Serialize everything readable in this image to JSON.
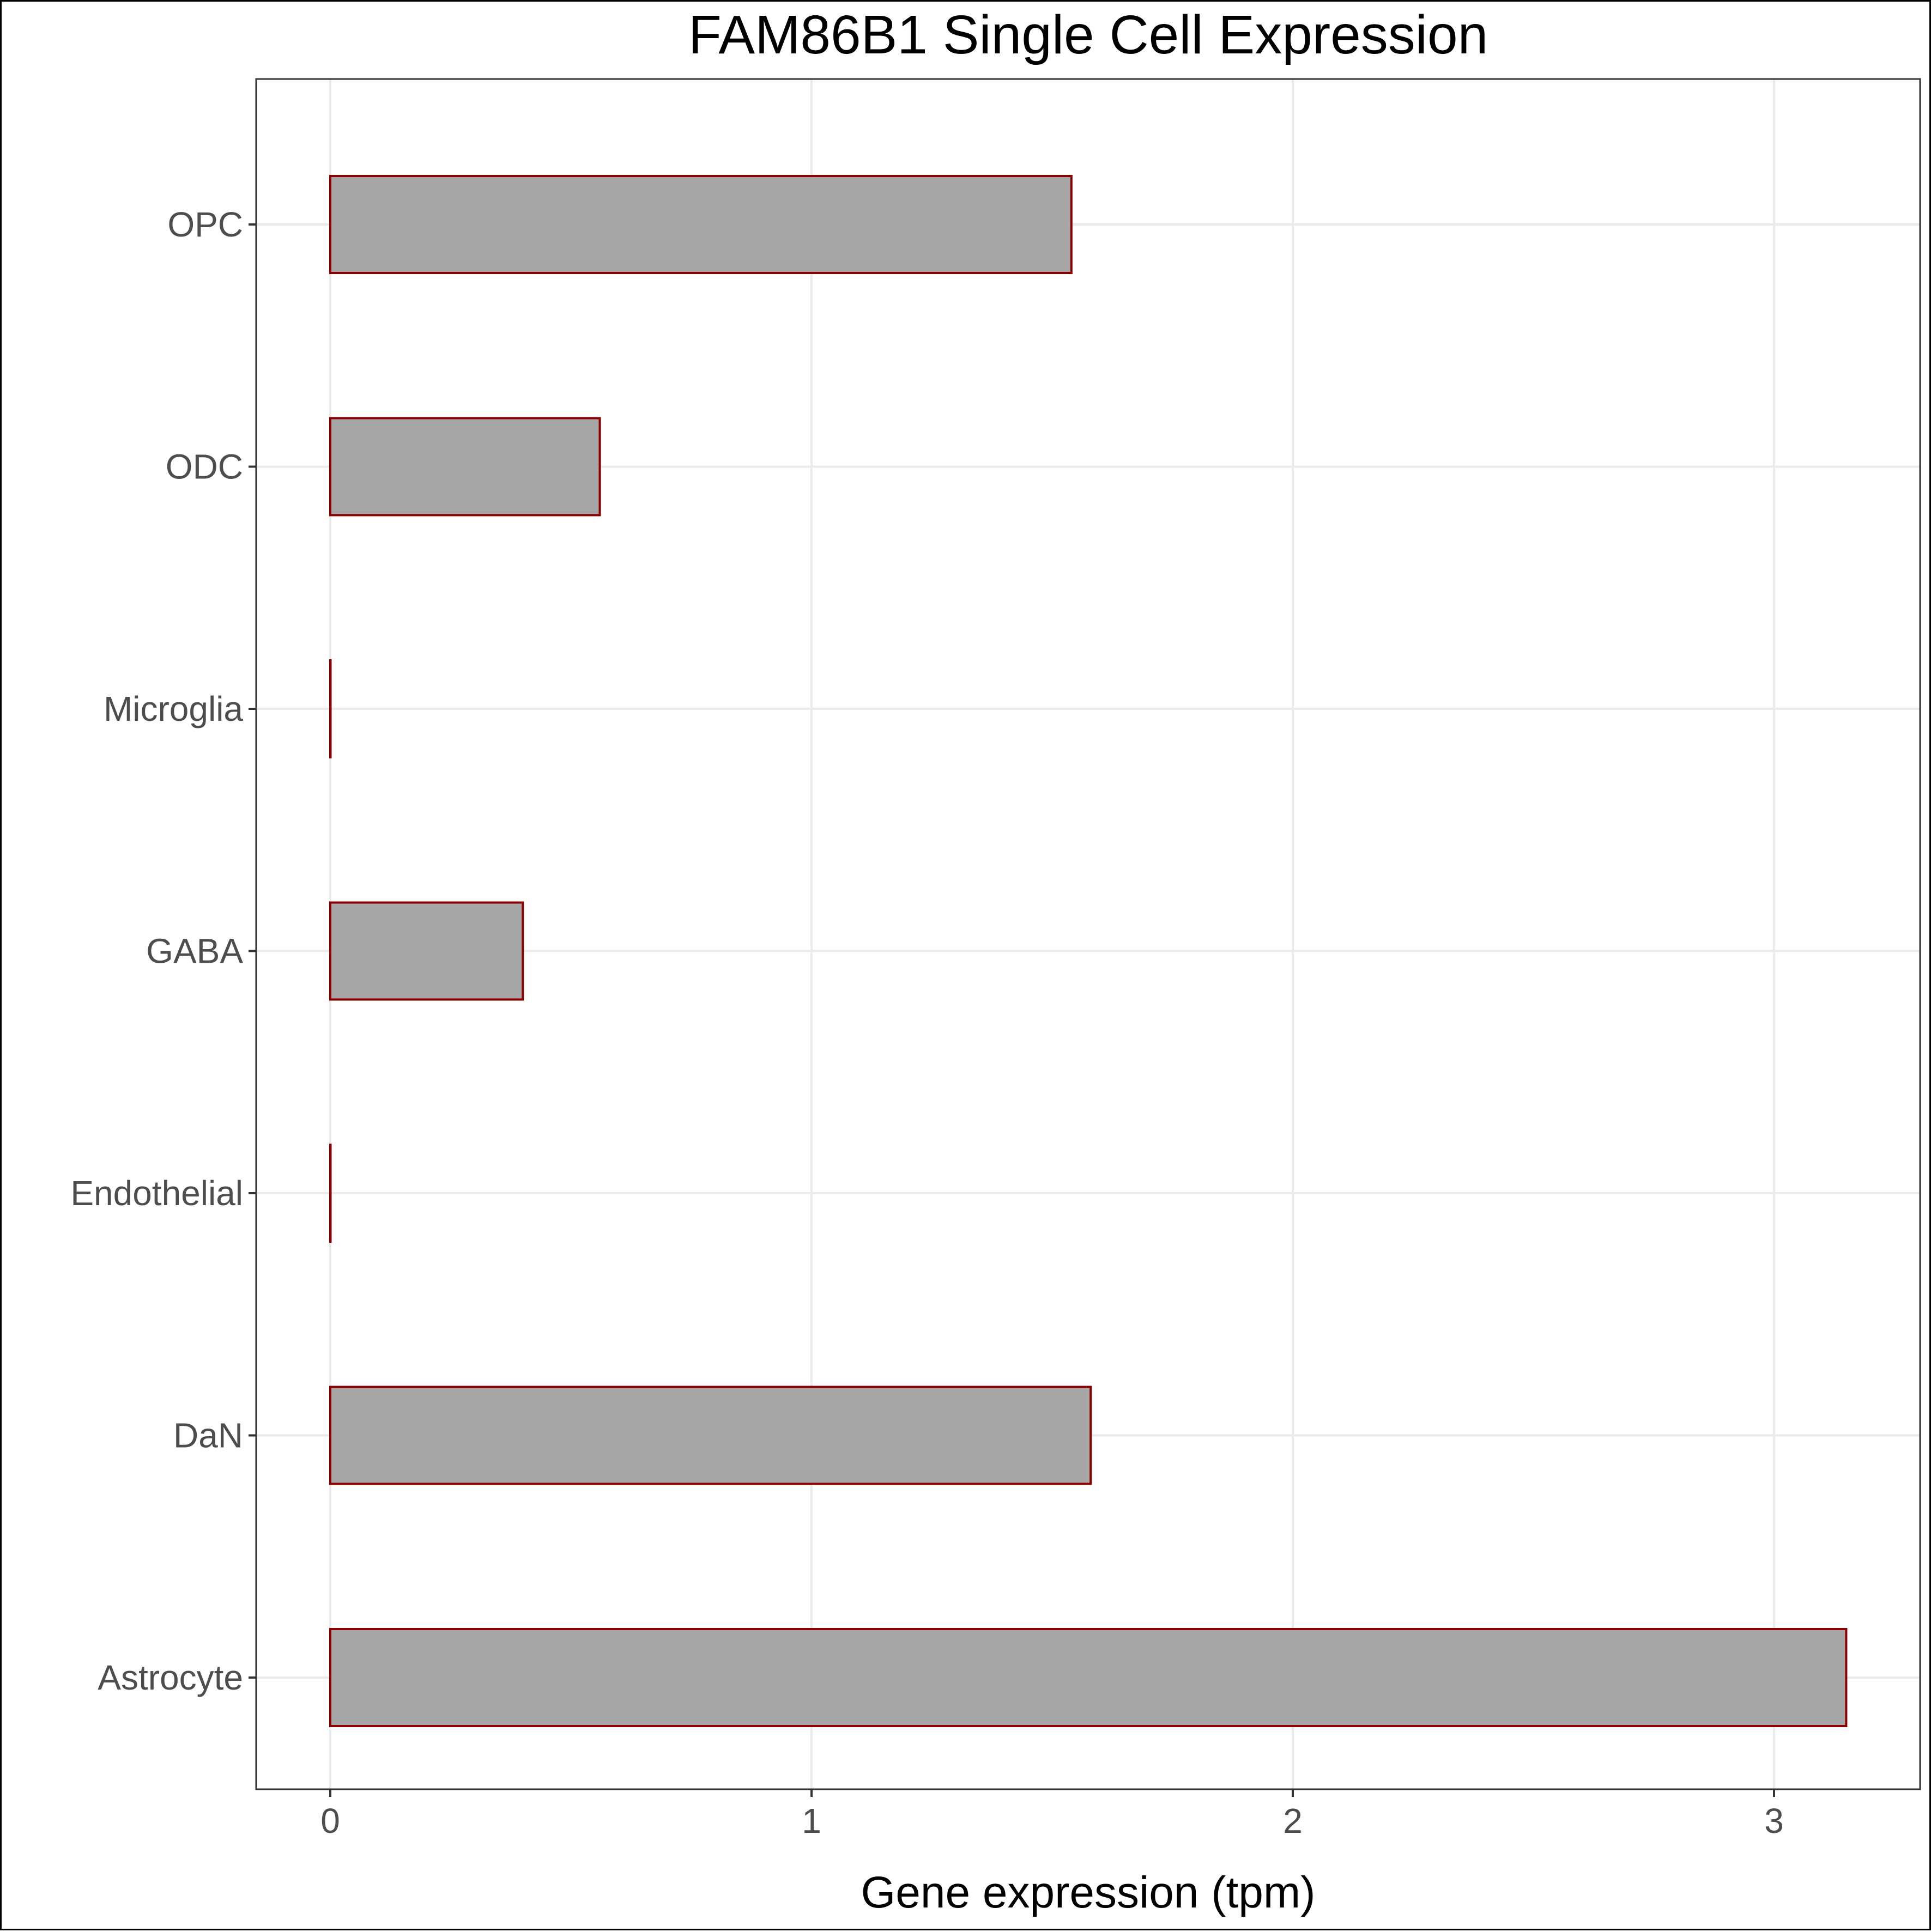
{
  "chart_data": {
    "type": "bar",
    "orientation": "horizontal",
    "title": "FAM86B1 Single Cell Expression",
    "xlabel": "Gene expression (tpm)",
    "ylabel": "",
    "categories": [
      "Astrocyte",
      "DaN",
      "Endothelial",
      "GABA",
      "Microglia",
      "ODC",
      "OPC"
    ],
    "values": [
      3.15,
      1.58,
      0,
      0.4,
      0,
      0.56,
      1.54
    ],
    "xlim": [
      -0.155,
      3.3
    ],
    "xticks": [
      0,
      1,
      2,
      3
    ],
    "grid": true,
    "legend": "none",
    "colors": {
      "bar_fill": "#a6a6a6",
      "bar_border": "#8b0000",
      "grid": "#ebebeb",
      "panel_border": "#333333",
      "tick_text": "#4d4d4d",
      "title_text": "#000000"
    }
  }
}
